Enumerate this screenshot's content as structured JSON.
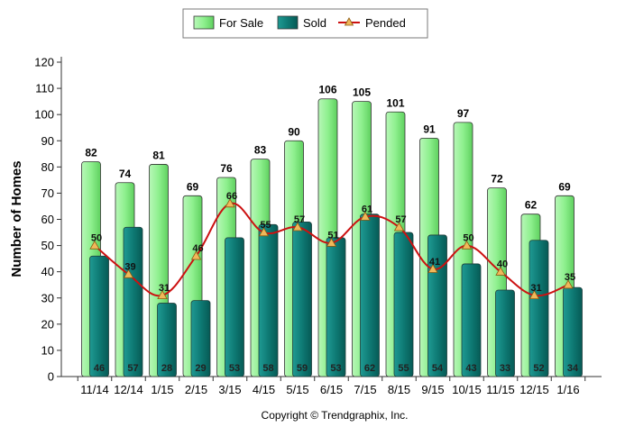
{
  "chart_data": {
    "type": "bar",
    "categories": [
      "11/14",
      "12/14",
      "1/15",
      "2/15",
      "3/15",
      "4/15",
      "5/15",
      "6/15",
      "7/15",
      "8/15",
      "9/15",
      "10/15",
      "11/15",
      "12/15",
      "1/16"
    ],
    "series": [
      {
        "name": "For Sale",
        "kind": "bar",
        "color": "#8ef08e",
        "values": [
          82,
          74,
          81,
          69,
          76,
          83,
          90,
          106,
          105,
          101,
          91,
          97,
          72,
          62,
          69
        ]
      },
      {
        "name": "Sold",
        "kind": "bar",
        "color": "#0e7a74",
        "values": [
          46,
          57,
          28,
          29,
          53,
          58,
          59,
          53,
          62,
          55,
          54,
          43,
          33,
          52,
          34
        ]
      },
      {
        "name": "Pended",
        "kind": "line",
        "color": "#cc1111",
        "marker_color": "#f0b85a",
        "values": [
          50,
          39,
          31,
          46,
          66,
          55,
          57,
          51,
          61,
          57,
          41,
          50,
          40,
          31,
          35
        ]
      }
    ],
    "ylabel": "Number of Homes",
    "xlabel": "",
    "ylim": [
      0,
      120
    ],
    "yticks": [
      0,
      10,
      20,
      30,
      40,
      50,
      60,
      70,
      80,
      90,
      100,
      110,
      120
    ],
    "grid": false,
    "legend_position": "top-center",
    "footer": "Copyright © Trendgraphix, Inc."
  }
}
